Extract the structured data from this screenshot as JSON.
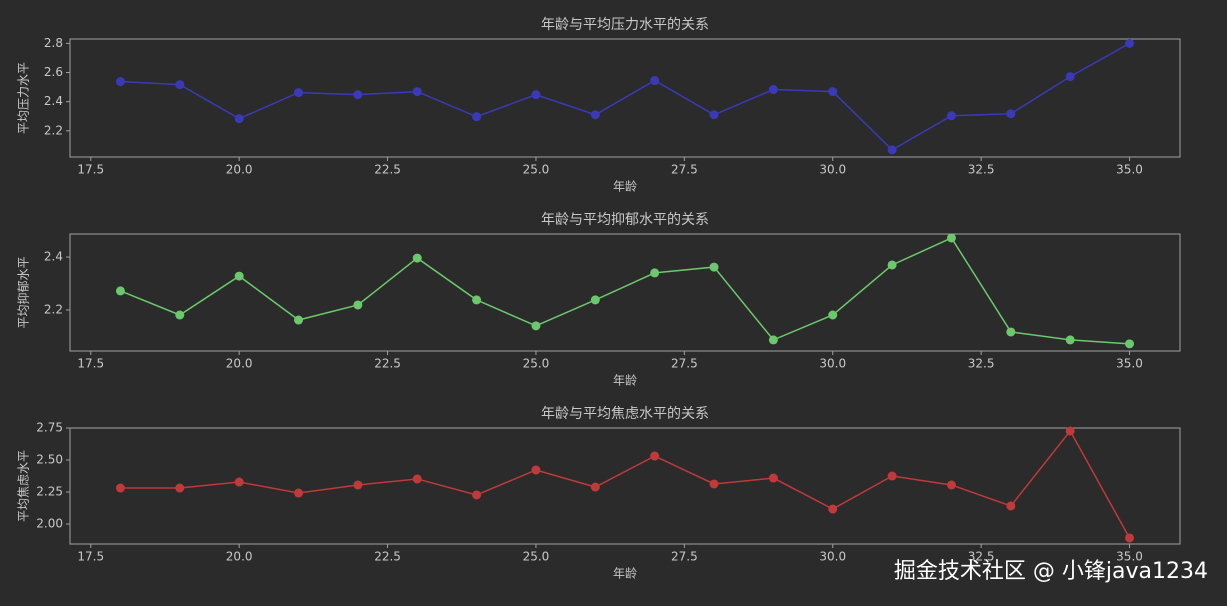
{
  "chart_data": [
    {
      "type": "line",
      "title": "年龄与平均压力水平的关系",
      "x_label": "年龄",
      "y_label": "平均压力水平",
      "x": [
        18,
        19,
        20,
        21,
        22,
        23,
        24,
        25,
        26,
        27,
        28,
        29,
        30,
        31,
        32,
        33,
        34,
        35
      ],
      "series": [
        {
          "name": "平均压力水平",
          "color": "#3a3ab8",
          "values": [
            2.538,
            2.517,
            2.283,
            2.462,
            2.448,
            2.469,
            2.297,
            2.448,
            2.31,
            2.545,
            2.31,
            2.483,
            2.469,
            2.069,
            2.303,
            2.317,
            2.572,
            2.8
          ]
        }
      ],
      "xlim": [
        17.15,
        35.85
      ],
      "ylim": [
        2.02,
        2.83
      ],
      "xticks": [
        {
          "value": 17.5,
          "label": "17.5"
        },
        {
          "value": 20,
          "label": "20.0"
        },
        {
          "value": 22.5,
          "label": "22.5"
        },
        {
          "value": 25,
          "label": "25.0"
        },
        {
          "value": 27.5,
          "label": "27.5"
        },
        {
          "value": 30,
          "label": "30.0"
        },
        {
          "value": 32.5,
          "label": "32.5"
        },
        {
          "value": 35,
          "label": "35.0"
        }
      ],
      "yticks": [
        2.2,
        2.4,
        2.6,
        2.8
      ]
    },
    {
      "type": "line",
      "title": "年龄与平均抑郁水平的关系",
      "x_label": "年龄",
      "y_label": "平均抑郁水平",
      "x": [
        18,
        19,
        20,
        21,
        22,
        23,
        24,
        25,
        26,
        27,
        28,
        29,
        30,
        31,
        32,
        33,
        34,
        35
      ],
      "series": [
        {
          "name": "平均抑郁水平",
          "color": "#6cc86c",
          "values": [
            2.272,
            2.181,
            2.328,
            2.162,
            2.219,
            2.396,
            2.238,
            2.14,
            2.238,
            2.34,
            2.362,
            2.087,
            2.181,
            2.37,
            2.472,
            2.117,
            2.087,
            2.072
          ]
        }
      ],
      "xlim": [
        17.15,
        35.85
      ],
      "ylim": [
        2.045,
        2.487
      ],
      "xticks": [
        {
          "value": 17.5,
          "label": "17.5"
        },
        {
          "value": 20,
          "label": "20.0"
        },
        {
          "value": 22.5,
          "label": "22.5"
        },
        {
          "value": 25,
          "label": "25.0"
        },
        {
          "value": 27.5,
          "label": "27.5"
        },
        {
          "value": 30,
          "label": "30.0"
        },
        {
          "value": 32.5,
          "label": "32.5"
        },
        {
          "value": 35,
          "label": "35.0"
        }
      ],
      "yticks": [
        2.2,
        2.4
      ]
    },
    {
      "type": "line",
      "title": "年龄与平均焦虑水平的关系",
      "x_label": "年龄",
      "y_label": "平均焦虑水平",
      "x": [
        18,
        19,
        20,
        21,
        22,
        23,
        24,
        25,
        26,
        27,
        28,
        29,
        30,
        31,
        32,
        33,
        34,
        35
      ],
      "series": [
        {
          "name": "平均焦虑水平",
          "color": "#c0393b",
          "values": [
            2.281,
            2.281,
            2.328,
            2.242,
            2.305,
            2.352,
            2.227,
            2.422,
            2.289,
            2.531,
            2.313,
            2.359,
            2.117,
            2.375,
            2.305,
            2.141,
            2.727,
            1.891
          ]
        }
      ],
      "xlim": [
        17.15,
        35.85
      ],
      "ylim": [
        1.844,
        2.75
      ],
      "xticks": [
        {
          "value": 17.5,
          "label": "17.5"
        },
        {
          "value": 20,
          "label": "20.0"
        },
        {
          "value": 22.5,
          "label": "22.5"
        },
        {
          "value": 25,
          "label": "25.0"
        },
        {
          "value": 27.5,
          "label": "27.5"
        },
        {
          "value": 30,
          "label": "30.0"
        },
        {
          "value": 32.5,
          "label": "32.5"
        },
        {
          "value": 35,
          "label": "35.0"
        }
      ],
      "yticks": [
        {
          "value": 2.0,
          "label": "2.00"
        },
        {
          "value": 2.25,
          "label": "2.25"
        },
        {
          "value": 2.5,
          "label": "2.50"
        },
        {
          "value": 2.75,
          "label": "2.75"
        }
      ]
    }
  ],
  "watermark": "掘金技术社区 @ 小锋java1234"
}
